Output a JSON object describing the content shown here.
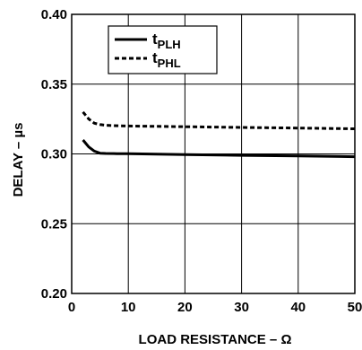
{
  "chart_data": {
    "type": "line",
    "title": "",
    "xlabel": "LOAD RESISTANCE – Ω",
    "ylabel": "DELAY – µs",
    "xlim": [
      0,
      50
    ],
    "ylim": [
      0.2,
      0.4
    ],
    "x_ticks": [
      0,
      10,
      20,
      30,
      40,
      50
    ],
    "x_tick_labels": [
      "0",
      "10",
      "20",
      "30",
      "40",
      "50"
    ],
    "y_ticks": [
      0.2,
      0.25,
      0.3,
      0.35,
      0.4
    ],
    "y_tick_labels": [
      "0.20",
      "0.25",
      "0.30",
      "0.35",
      "0.40"
    ],
    "grid": true,
    "legend_position": "top-left",
    "series": [
      {
        "name": "tPLH",
        "legend_main": "t",
        "legend_sub": "PLH",
        "style": "solid",
        "color": "#000000",
        "x": [
          2,
          3,
          4,
          5,
          6,
          8,
          10,
          20,
          30,
          40,
          50
        ],
        "y": [
          0.31,
          0.305,
          0.302,
          0.3005,
          0.3003,
          0.3002,
          0.3001,
          0.2995,
          0.299,
          0.2985,
          0.298
        ]
      },
      {
        "name": "tPHL",
        "legend_main": "t",
        "legend_sub": "PHL",
        "style": "dashed",
        "color": "#000000",
        "x": [
          2,
          3,
          4,
          5,
          6,
          8,
          10,
          20,
          30,
          40,
          50
        ],
        "y": [
          0.33,
          0.325,
          0.322,
          0.321,
          0.3205,
          0.3202,
          0.32,
          0.3195,
          0.319,
          0.3185,
          0.318
        ]
      }
    ]
  }
}
